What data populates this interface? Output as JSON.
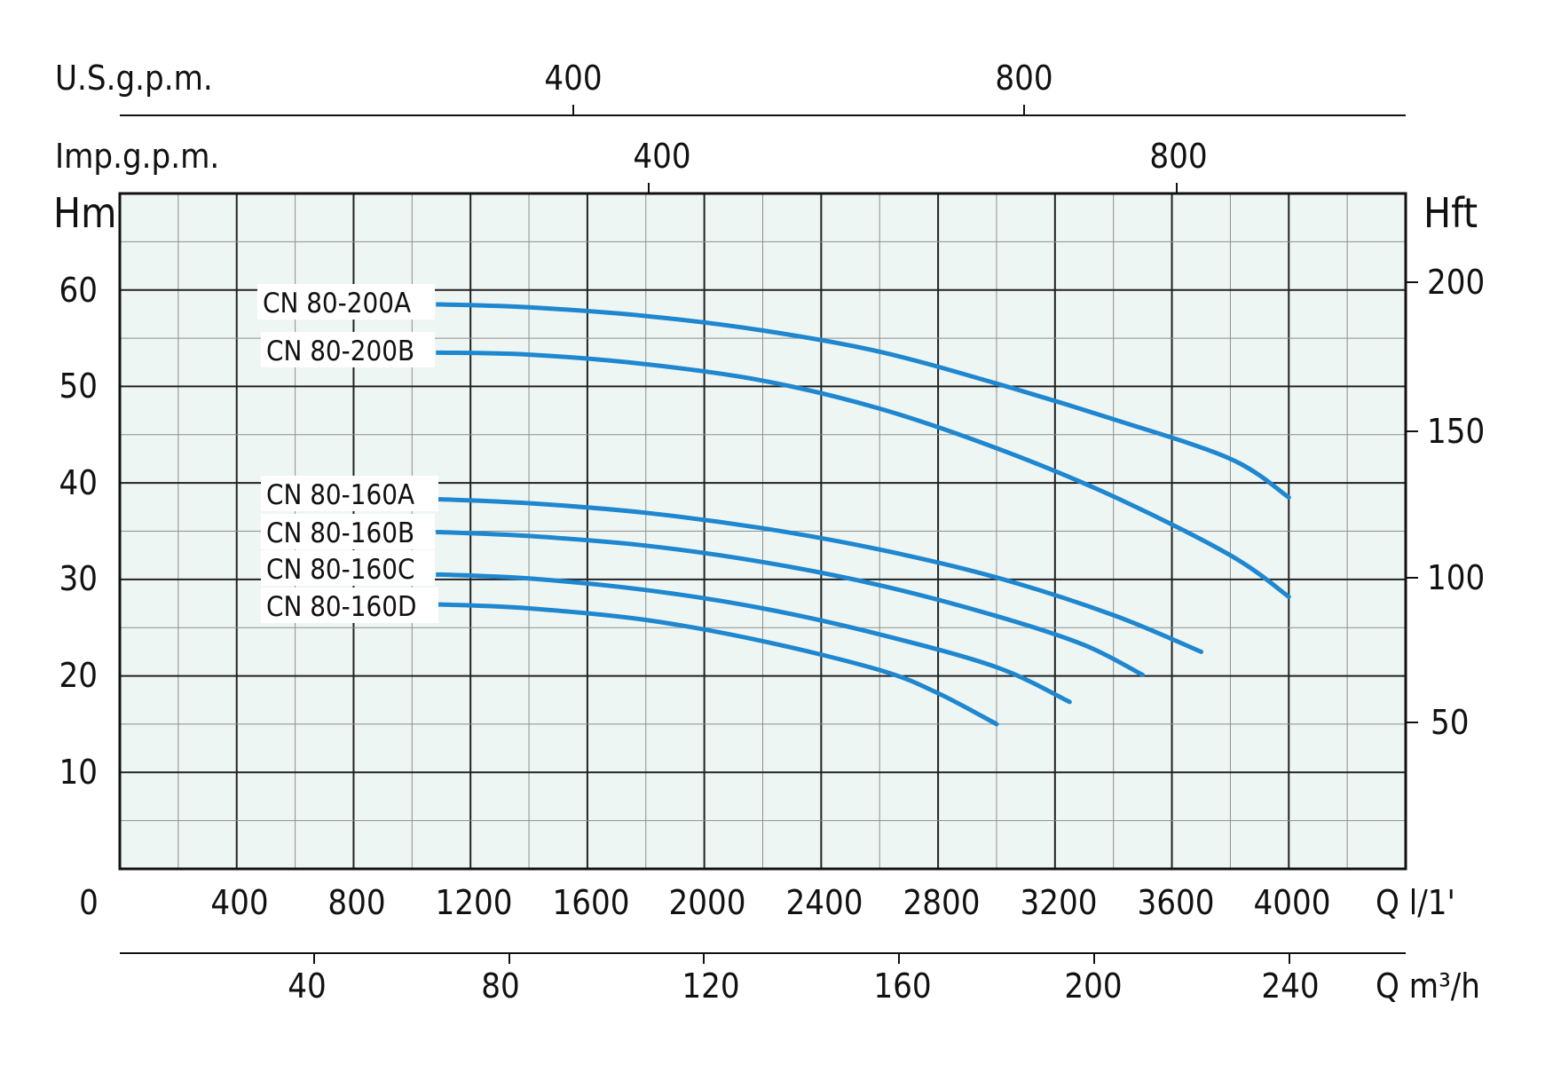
{
  "chart_data": {
    "type": "line",
    "axes": {
      "y_left": {
        "label": "Hm",
        "ticks": [
          "10",
          "20",
          "30",
          "40",
          "50",
          "60"
        ],
        "ylim": [
          0,
          70
        ]
      },
      "y_right": {
        "label": "Hft",
        "ticks": [
          "50",
          "100",
          "150",
          "200"
        ]
      },
      "x_bottom_primary": {
        "label": "Q l/1'",
        "ticks": [
          "0",
          "400",
          "800",
          "1200",
          "1600",
          "2000",
          "2400",
          "2800",
          "3200",
          "3600",
          "4000"
        ],
        "xlim": [
          0,
          4400
        ]
      },
      "x_bottom_secondary": {
        "label": "Q m³/h",
        "ticks": [
          "40",
          "80",
          "120",
          "160",
          "200",
          "240"
        ]
      },
      "x_top_us": {
        "label": "U.S.g.p.m.",
        "ticks": [
          "400",
          "800"
        ]
      },
      "x_top_imp": {
        "label": "Imp.g.p.m.",
        "ticks": [
          "400",
          "800"
        ]
      }
    },
    "grid": true,
    "series": [
      {
        "name": "CN 80-200A",
        "points": [
          [
            1100,
            58.5
          ],
          [
            1400,
            58.2
          ],
          [
            1800,
            57.3
          ],
          [
            2200,
            55.8
          ],
          [
            2600,
            53.6
          ],
          [
            3000,
            50.3
          ],
          [
            3400,
            46.6
          ],
          [
            3800,
            42.5
          ],
          [
            4000,
            38.5
          ]
        ]
      },
      {
        "name": "CN 80-200B",
        "points": [
          [
            1100,
            53.5
          ],
          [
            1400,
            53.3
          ],
          [
            1800,
            52.3
          ],
          [
            2200,
            50.6
          ],
          [
            2600,
            47.7
          ],
          [
            3000,
            43.6
          ],
          [
            3400,
            38.6
          ],
          [
            3800,
            32.5
          ],
          [
            4000,
            28.2
          ]
        ]
      },
      {
        "name": "CN 80-160A",
        "points": [
          [
            1100,
            38.3
          ],
          [
            1400,
            37.9
          ],
          [
            1800,
            36.9
          ],
          [
            2200,
            35.3
          ],
          [
            2600,
            33.1
          ],
          [
            3000,
            30.2
          ],
          [
            3400,
            26.3
          ],
          [
            3700,
            22.5
          ]
        ]
      },
      {
        "name": "CN 80-160B",
        "points": [
          [
            1100,
            34.9
          ],
          [
            1400,
            34.5
          ],
          [
            1800,
            33.5
          ],
          [
            2200,
            31.8
          ],
          [
            2600,
            29.4
          ],
          [
            3000,
            26.2
          ],
          [
            3300,
            23.2
          ],
          [
            3500,
            20.1
          ]
        ]
      },
      {
        "name": "CN 80-160C",
        "points": [
          [
            1100,
            30.5
          ],
          [
            1400,
            30.1
          ],
          [
            1800,
            28.9
          ],
          [
            2200,
            27.0
          ],
          [
            2600,
            24.3
          ],
          [
            3000,
            20.9
          ],
          [
            3250,
            17.3
          ]
        ]
      },
      {
        "name": "CN 80-160D",
        "points": [
          [
            1100,
            27.4
          ],
          [
            1400,
            27.0
          ],
          [
            1800,
            25.8
          ],
          [
            2200,
            23.6
          ],
          [
            2600,
            20.6
          ],
          [
            2800,
            18.2
          ],
          [
            3000,
            15.0
          ]
        ]
      }
    ],
    "colors": {
      "curve": "#1f87cf",
      "plot_bg": "#eef6f4",
      "grid": "#222222"
    }
  }
}
